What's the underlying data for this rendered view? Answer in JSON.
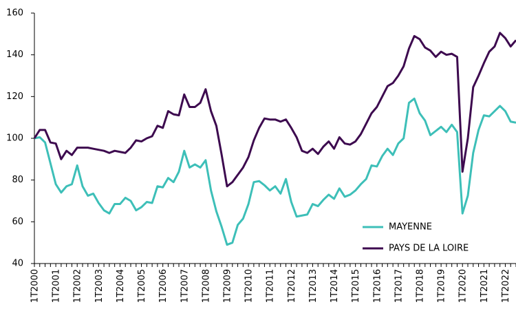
{
  "chart_data": {
    "type": "line",
    "categories": [
      "1T2000",
      null,
      null,
      null,
      "1T2001",
      null,
      null,
      null,
      "1T2002",
      null,
      null,
      null,
      "1T2003",
      null,
      null,
      null,
      "1T2004",
      null,
      null,
      null,
      "1T2005",
      null,
      null,
      null,
      "1T2006",
      null,
      null,
      null,
      "1T2007",
      null,
      null,
      null,
      "1T2008",
      null,
      null,
      null,
      "1T2009",
      null,
      null,
      null,
      "1T2010",
      null,
      null,
      null,
      "1T2011",
      null,
      null,
      null,
      "1T2012",
      null,
      null,
      null,
      "1T2013",
      null,
      null,
      null,
      "1T2014",
      null,
      null,
      null,
      "1T2015",
      null,
      null,
      null,
      "1T2016",
      null,
      null,
      null,
      "1T2017",
      null,
      null,
      null,
      "1T2018",
      null,
      null,
      null,
      "1T2019",
      null,
      null,
      null,
      "1T2020",
      null,
      null,
      null,
      "1T2021",
      null,
      null,
      null,
      "1T2022",
      null,
      null
    ],
    "series": [
      {
        "name": "MAYENNE",
        "color": "#3dbfb8",
        "values": [
          100,
          100.5,
          98,
          88,
          78,
          74,
          77,
          78,
          87,
          77,
          72.5,
          73.5,
          69,
          65.5,
          64,
          68.5,
          68.5,
          71.5,
          70,
          65.5,
          67,
          69.5,
          69,
          77,
          76.5,
          81,
          79,
          84,
          94,
          86,
          87.5,
          86,
          89.5,
          75,
          65,
          57.5,
          49,
          50,
          58.5,
          61.5,
          68.5,
          79,
          79.5,
          77.5,
          75,
          77,
          73.5,
          80.5,
          69.5,
          62.5,
          63,
          63.5,
          68.5,
          67.5,
          70.5,
          73,
          71,
          76,
          72,
          73,
          75,
          78,
          80.5,
          87,
          86.5,
          91.5,
          95,
          92,
          97.5,
          100,
          117,
          119,
          112,
          108.5,
          101.5,
          103.5,
          105.5,
          103,
          106.5,
          103,
          64,
          72.5,
          93,
          104,
          111,
          110.5,
          113,
          115.5,
          113,
          108,
          107.5
        ]
      },
      {
        "name": "PAYS DE LA LOIRE",
        "color": "#3d0a4f",
        "values": [
          100,
          104,
          104,
          98,
          97.5,
          90,
          94,
          92,
          95.5,
          95.5,
          95.5,
          95,
          94.5,
          94,
          93,
          94,
          93.5,
          93,
          95.5,
          99,
          98.5,
          100,
          101,
          106,
          105,
          113,
          111.5,
          111,
          121,
          115,
          115,
          117,
          123.5,
          113,
          106,
          92,
          77,
          79,
          82.5,
          86,
          91,
          99,
          105,
          109.5,
          109,
          109,
          108,
          109,
          105,
          100.5,
          94,
          93,
          95,
          92.5,
          96,
          98.5,
          95,
          100.5,
          97.5,
          97,
          98.5,
          102,
          107,
          112,
          115,
          120,
          125,
          126.5,
          130,
          134.5,
          143,
          149,
          147.5,
          143.5,
          142,
          139,
          141.5,
          140,
          140.5,
          139,
          84,
          100,
          124.5,
          130,
          136,
          141.5,
          144,
          150.5,
          148,
          144,
          147
        ]
      }
    ],
    "ylim": [
      40,
      160
    ],
    "yticks": [
      40,
      60,
      80,
      100,
      120,
      140,
      160
    ],
    "grid": false,
    "legend": "lower right"
  }
}
